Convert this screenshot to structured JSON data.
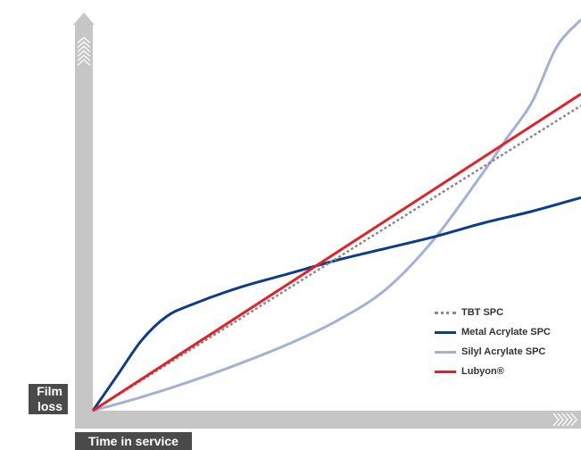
{
  "chart_data": {
    "type": "line",
    "xlabel": "Time in service",
    "ylabel": [
      "Film",
      "loss"
    ],
    "xlim": [
      0,
      1
    ],
    "ylim": [
      0,
      1
    ],
    "grid": false,
    "legend_position": "bottom-right",
    "series": [
      {
        "name": "TBT SPC",
        "color": "#8a8a8a",
        "style": "dotted",
        "x": [
          0,
          0.2,
          0.4,
          0.6,
          0.8,
          1.0
        ],
        "y": [
          0,
          0.156,
          0.312,
          0.468,
          0.624,
          0.78
        ]
      },
      {
        "name": "Metal Acrylate SPC",
        "color": "#0d3d8a",
        "style": "solid",
        "x": [
          0,
          0.05,
          0.1,
          0.15,
          0.2,
          0.3,
          0.4,
          0.5,
          0.6,
          0.7,
          0.8,
          0.9,
          1.0
        ],
        "y": [
          0,
          0.09,
          0.18,
          0.24,
          0.27,
          0.315,
          0.35,
          0.385,
          0.415,
          0.445,
          0.48,
          0.51,
          0.545
        ]
      },
      {
        "name": "Silyl Acrylate SPC",
        "color": "#a3b1d4",
        "style": "solid",
        "x": [
          0,
          0.1,
          0.2,
          0.3,
          0.4,
          0.5,
          0.6,
          0.7,
          0.8,
          0.85,
          0.9,
          0.95,
          1.0
        ],
        "y": [
          0,
          0.035,
          0.075,
          0.12,
          0.17,
          0.23,
          0.31,
          0.44,
          0.61,
          0.7,
          0.79,
          0.93,
          1.0
        ]
      },
      {
        "name": "Lubyon®",
        "color": "#e02329",
        "style": "solid",
        "x": [
          0,
          0.2,
          0.4,
          0.6,
          0.8,
          1.0
        ],
        "y": [
          0,
          0.162,
          0.324,
          0.486,
          0.648,
          0.81
        ]
      }
    ]
  }
}
